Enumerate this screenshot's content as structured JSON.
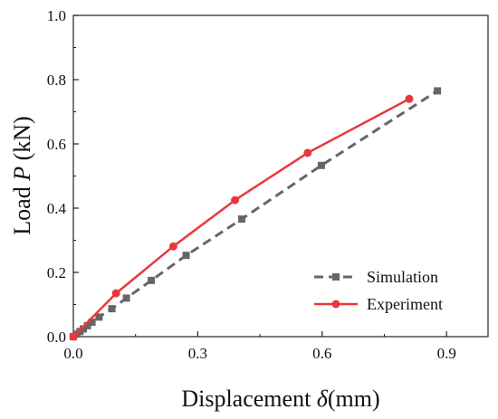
{
  "chart_data": {
    "type": "line",
    "xlabel": {
      "prefix": "Displacement ",
      "symbol": "δ",
      "suffix": "(mm)"
    },
    "ylabel": {
      "prefix": "Load ",
      "symbol": "P",
      "suffix": " (kN)"
    },
    "xlim": [
      0,
      1.0
    ],
    "ylim": [
      0,
      1.0
    ],
    "xticks": [
      0.0,
      0.3,
      0.6,
      0.9
    ],
    "xtick_labels": [
      "0.0",
      "0.3",
      "0.6",
      "0.9"
    ],
    "yticks": [
      0.0,
      0.2,
      0.4,
      0.6,
      0.8,
      1.0
    ],
    "ytick_labels": [
      "0.0",
      "0.2",
      "0.4",
      "0.6",
      "0.8",
      "1.0"
    ],
    "grid": false,
    "legend_position": "bottom-right",
    "series": [
      {
        "name": "Simulation",
        "color": "#666666",
        "line_style": "dashed",
        "marker": "square",
        "x": [
          0.0,
          0.008,
          0.016,
          0.024,
          0.034,
          0.045,
          0.062,
          0.093,
          0.128,
          0.188,
          0.272,
          0.406,
          0.598,
          0.878
        ],
        "y": [
          0.0,
          0.008,
          0.016,
          0.024,
          0.034,
          0.045,
          0.061,
          0.087,
          0.12,
          0.175,
          0.253,
          0.366,
          0.533,
          0.765
        ]
      },
      {
        "name": "Experiment",
        "color": "#e8383d",
        "line_style": "solid",
        "marker": "circle",
        "x": [
          0.0,
          0.103,
          0.241,
          0.39,
          0.565,
          0.81
        ],
        "y": [
          0.0,
          0.135,
          0.281,
          0.425,
          0.572,
          0.74
        ]
      }
    ]
  }
}
